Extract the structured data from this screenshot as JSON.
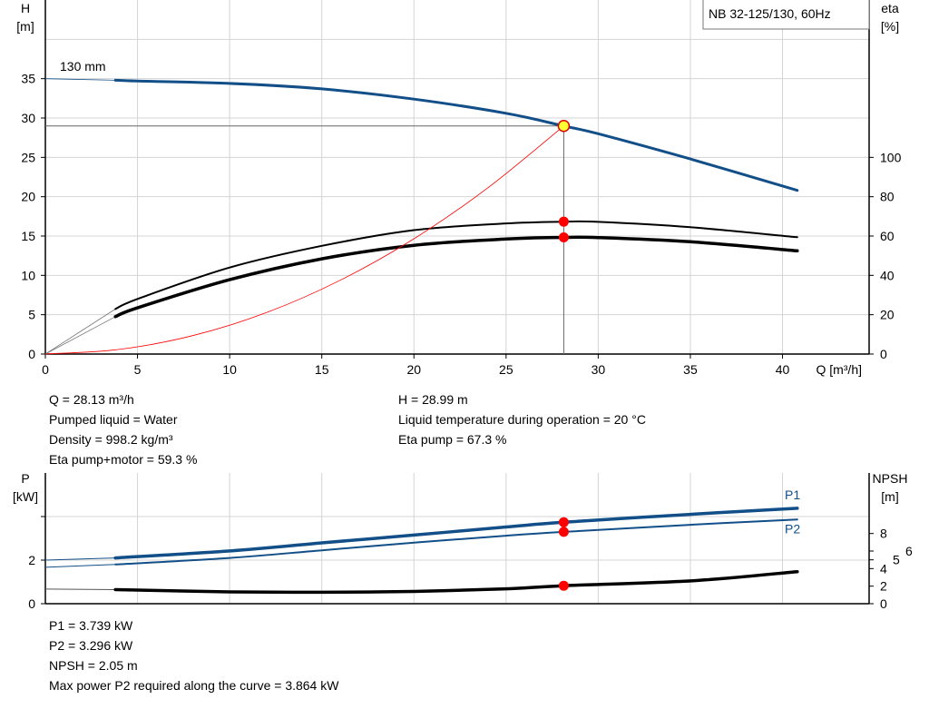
{
  "legend_box": "NB 32-125/130, 60Hz",
  "chart_data": [
    {
      "type": "line",
      "title": "",
      "xlabel": "Q [m³/h]",
      "ylabel": "H\n[m]",
      "ylabel_parts": [
        "H",
        "[m]"
      ],
      "y2label_parts": [
        "eta",
        "[%]"
      ],
      "xlim": [
        0,
        44.7
      ],
      "ylim": [
        0,
        45
      ],
      "y2lim": [
        0,
        180
      ],
      "xticks": [
        0,
        5,
        10,
        15,
        20,
        25,
        30,
        35,
        40
      ],
      "yticks": [
        0,
        5,
        10,
        15,
        20,
        25,
        30,
        35
      ],
      "y2ticks": [
        0,
        20,
        40,
        60,
        80,
        100
      ],
      "grid": true,
      "annotation": "130 mm",
      "duty_point": {
        "Q": 28.13,
        "H": 28.99,
        "eta_pump": 67.3,
        "eta_pump_motor": 59.3
      },
      "series": [
        {
          "key": "H",
          "axis": "left",
          "color": "#124f88",
          "x": [
            3.8,
            5,
            10,
            15,
            20,
            25,
            28.13,
            30,
            35,
            40.8
          ],
          "y": [
            34.8,
            34.7,
            34.4,
            33.7,
            32.4,
            30.6,
            28.99,
            28.0,
            24.8,
            20.8
          ],
          "extrapolated_from": [
            0,
            35.0
          ]
        },
        {
          "key": "eta_pump",
          "axis": "right",
          "color": "#000000",
          "x": [
            3.8,
            5,
            10,
            15,
            20,
            25,
            28.13,
            30,
            35,
            40.8
          ],
          "y": [
            22.9,
            28,
            44,
            55,
            63,
            66.4,
            67.3,
            67.2,
            64.5,
            59.4
          ],
          "extrapolated_from": [
            0,
            0
          ]
        },
        {
          "key": "eta_pump_motor",
          "axis": "right",
          "color": "#000000",
          "x": [
            3.8,
            5,
            10,
            15,
            20,
            25,
            28.13,
            30,
            35,
            40.8
          ],
          "y": [
            19.0,
            23.5,
            37.8,
            48.4,
            55.3,
            58.5,
            59.3,
            59.2,
            57.1,
            52.5
          ],
          "extrapolated_from": [
            0,
            0
          ]
        },
        {
          "key": "system_curve",
          "axis": "left",
          "color": "#ff0000",
          "x": [
            0,
            4,
            8,
            12,
            16,
            20,
            24,
            28.13
          ],
          "y": [
            0,
            0.59,
            2.34,
            5.27,
            9.38,
            14.65,
            21.1,
            28.99
          ]
        }
      ]
    },
    {
      "type": "line",
      "title": "",
      "ylabel_parts": [
        "P",
        "[kW]"
      ],
      "y2label_parts": [
        "NPSH",
        "[m]"
      ],
      "xlim": [
        0,
        44.7
      ],
      "ylim": [
        0,
        6
      ],
      "y2lim": [
        0,
        14.9
      ],
      "xticks": [
        5,
        10,
        15,
        20,
        25,
        30,
        35,
        40
      ],
      "yticks": [
        0,
        2,
        4
      ],
      "yticklabels": [
        "0",
        "2",
        ""
      ],
      "y2ticks": [
        0,
        2,
        4,
        5,
        6,
        8
      ],
      "grid": true,
      "duty_point": {
        "Q": 28.13,
        "P1": 3.739,
        "P2": 3.296,
        "NPSH": 2.05
      },
      "series": [
        {
          "key": "P1",
          "name": "P1",
          "axis": "left",
          "color": "#124f88",
          "x": [
            3.8,
            10,
            15,
            20,
            25,
            28.13,
            35,
            40.8
          ],
          "y": [
            2.1,
            2.42,
            2.79,
            3.15,
            3.52,
            3.739,
            4.1,
            4.38
          ],
          "extrapolated_from": [
            0,
            2.0
          ]
        },
        {
          "key": "P2",
          "name": "P2",
          "axis": "left",
          "color": "#124f88",
          "x": [
            3.8,
            10,
            15,
            20,
            25,
            28.13,
            35,
            40.8
          ],
          "y": [
            1.8,
            2.1,
            2.45,
            2.8,
            3.12,
            3.296,
            3.62,
            3.864
          ],
          "extrapolated_from": [
            0,
            1.67
          ]
        },
        {
          "key": "NPSH",
          "axis": "right",
          "color": "#000000",
          "x": [
            3.8,
            10,
            15,
            20,
            25,
            28.13,
            35,
            40.8
          ],
          "y": [
            1.6,
            1.35,
            1.3,
            1.4,
            1.7,
            2.05,
            2.6,
            3.65
          ],
          "extrapolated_from": [
            0,
            1.67
          ]
        }
      ]
    }
  ],
  "readout_top_left": [
    "Q = 28.13 m³/h",
    "Pumped liquid = Water",
    "Density = 998.2 kg/m³",
    "Eta pump+motor = 59.3 %"
  ],
  "readout_top_right": [
    "H = 28.99 m",
    "Liquid temperature during operation = 20 °C",
    "Eta pump = 67.3 %"
  ],
  "readout_bottom": [
    "P1 = 3.739 kW",
    "P2 = 3.296 kW",
    "NPSH = 2.05 m",
    "Max power P2 required along the curve = 3.864 kW"
  ]
}
